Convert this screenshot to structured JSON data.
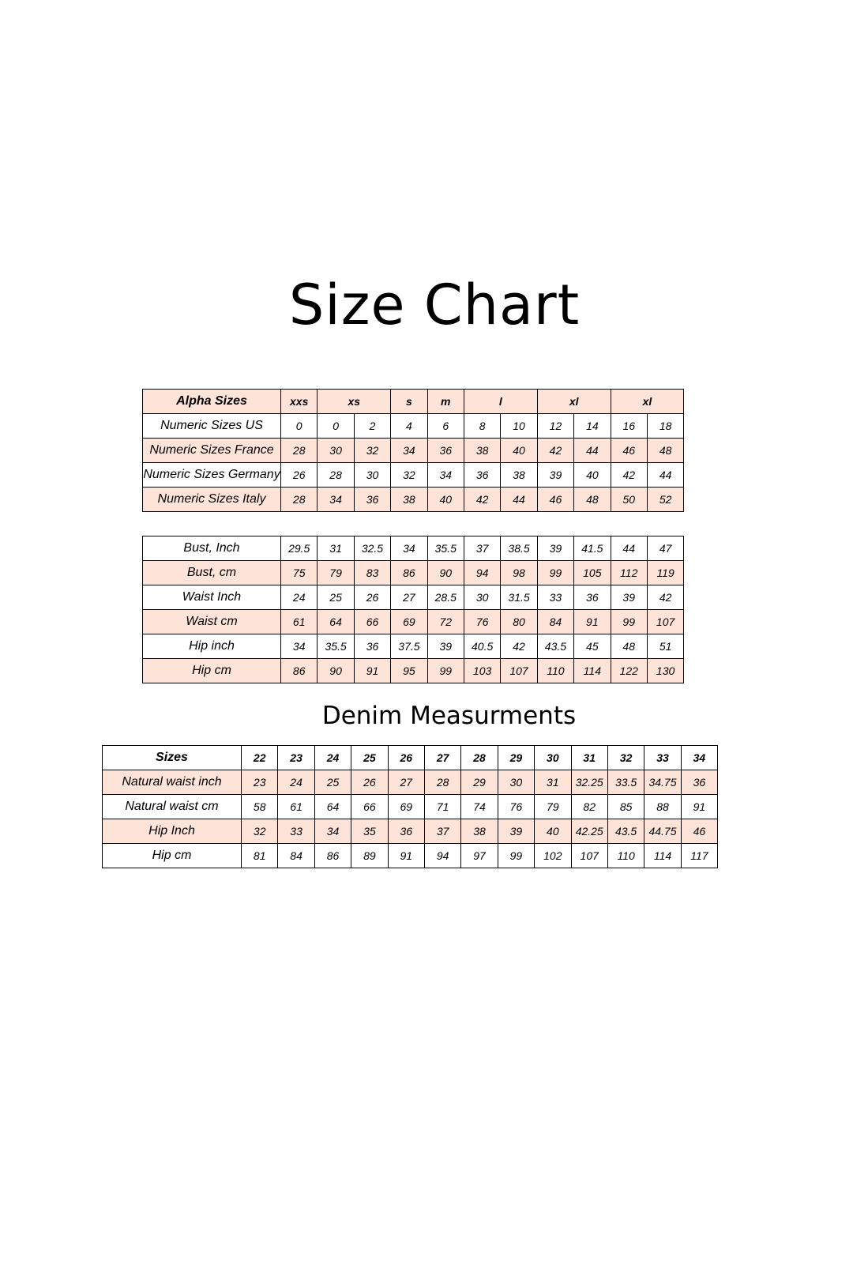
{
  "title": "Size Chart",
  "denim_title": "Denim Measurments",
  "colors": {
    "highlight_row": "#fde3d8",
    "border": "#000000"
  },
  "size_conversion": {
    "alpha_header": {
      "label": "Alpha Sizes",
      "sizes": [
        {
          "label": "xxs",
          "span": 1
        },
        {
          "label": "xs",
          "span": 2
        },
        {
          "label": "s",
          "span": 1
        },
        {
          "label": "m",
          "span": 1
        },
        {
          "label": "l",
          "span": 2
        },
        {
          "label": "xl",
          "span": 2
        },
        {
          "label": "xl",
          "span": 2
        }
      ]
    },
    "rows": [
      {
        "label": "Numeric Sizes US",
        "values": [
          "0",
          "0",
          "2",
          "4",
          "6",
          "8",
          "10",
          "12",
          "14",
          "16",
          "18"
        ]
      },
      {
        "label": "Numeric Sizes France",
        "values": [
          "28",
          "30",
          "32",
          "34",
          "36",
          "38",
          "40",
          "42",
          "44",
          "46",
          "48"
        ]
      },
      {
        "label": "Numeric Sizes Germany",
        "values": [
          "26",
          "28",
          "30",
          "32",
          "34",
          "36",
          "38",
          "39",
          "40",
          "42",
          "44"
        ]
      },
      {
        "label": "Numeric Sizes Italy",
        "values": [
          "28",
          "34",
          "36",
          "38",
          "40",
          "42",
          "44",
          "46",
          "48",
          "50",
          "52"
        ]
      }
    ]
  },
  "body_measurements": {
    "rows": [
      {
        "label": "Bust, Inch",
        "values": [
          "29.5",
          "31",
          "32.5",
          "34",
          "35.5",
          "37",
          "38.5",
          "39",
          "41.5",
          "44",
          "47"
        ]
      },
      {
        "label": "Bust, cm",
        "values": [
          "75",
          "79",
          "83",
          "86",
          "90",
          "94",
          "98",
          "99",
          "105",
          "112",
          "119"
        ]
      },
      {
        "label": "Waist Inch",
        "values": [
          "24",
          "25",
          "26",
          "27",
          "28.5",
          "30",
          "31.5",
          "33",
          "36",
          "39",
          "42"
        ]
      },
      {
        "label": "Waist cm",
        "values": [
          "61",
          "64",
          "66",
          "69",
          "72",
          "76",
          "80",
          "84",
          "91",
          "99",
          "107"
        ]
      },
      {
        "label": "Hip inch",
        "values": [
          "34",
          "35.5",
          "36",
          "37.5",
          "39",
          "40.5",
          "42",
          "43.5",
          "45",
          "48",
          "51"
        ]
      },
      {
        "label": "Hip cm",
        "values": [
          "86",
          "90",
          "91",
          "95",
          "99",
          "103",
          "107",
          "110",
          "114",
          "122",
          "130"
        ]
      }
    ]
  },
  "denim": {
    "header": {
      "label": "Sizes",
      "values": [
        "22",
        "23",
        "24",
        "25",
        "26",
        "27",
        "28",
        "29",
        "30",
        "31",
        "32",
        "33",
        "34"
      ]
    },
    "rows": [
      {
        "label": "Natural waist inch",
        "values": [
          "23",
          "24",
          "25",
          "26",
          "27",
          "28",
          "29",
          "30",
          "31",
          "32.25",
          "33.5",
          "34.75",
          "36"
        ]
      },
      {
        "label": "Natural waist cm",
        "values": [
          "58",
          "61",
          "64",
          "66",
          "69",
          "71",
          "74",
          "76",
          "79",
          "82",
          "85",
          "88",
          "91"
        ]
      },
      {
        "label": "Hip Inch",
        "values": [
          "32",
          "33",
          "34",
          "35",
          "36",
          "37",
          "38",
          "39",
          "40",
          "42.25",
          "43.5",
          "44.75",
          "46"
        ]
      },
      {
        "label": "Hip cm",
        "values": [
          "81",
          "84",
          "86",
          "89",
          "91",
          "94",
          "97",
          "99",
          "102",
          "107",
          "110",
          "114",
          "117"
        ]
      }
    ]
  }
}
